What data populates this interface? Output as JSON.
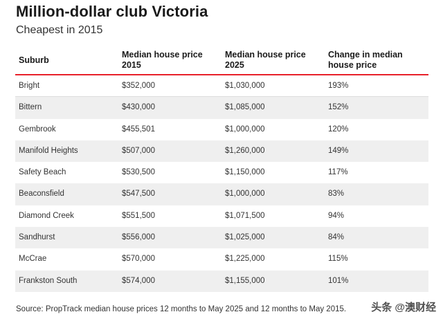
{
  "header": {
    "title": "Million-dollar club Victoria",
    "subtitle": "Cheapest in 2015"
  },
  "table": {
    "columns": [
      "Suburb",
      "Median house price 2015",
      "Median house price 2025",
      "Change in median house price"
    ],
    "column_lines": [
      [
        "Suburb"
      ],
      [
        "Median house price",
        "2015"
      ],
      [
        "Median house price",
        "2025"
      ],
      [
        "Change in median",
        "house price"
      ]
    ],
    "rows": [
      [
        "Bright",
        "$352,000",
        "$1,030,000",
        "193%"
      ],
      [
        "Bittern",
        "$430,000",
        "$1,085,000",
        "152%"
      ],
      [
        "Gembrook",
        "$455,501",
        "$1,000,000",
        "120%"
      ],
      [
        "Manifold Heights",
        "$507,000",
        "$1,260,000",
        "149%"
      ],
      [
        "Safety Beach",
        "$530,500",
        "$1,150,000",
        "117%"
      ],
      [
        "Beaconsfield",
        "$547,500",
        "$1,000,000",
        "83%"
      ],
      [
        "Diamond Creek",
        "$551,500",
        "$1,071,500",
        "94%"
      ],
      [
        "Sandhurst",
        "$556,000",
        "$1,025,000",
        "84%"
      ],
      [
        "McCrae",
        "$570,000",
        "$1,225,000",
        "115%"
      ],
      [
        "Frankston South",
        "$574,000",
        "$1,155,000",
        "101%"
      ]
    ]
  },
  "footer": {
    "source": "Source: PropTrack median house prices 12 months to May 2025 and 12 months to May 2015."
  },
  "watermark": "头条 @澳财经",
  "colors": {
    "accent_rule": "#e8202a",
    "alt_row": "#efefef"
  }
}
